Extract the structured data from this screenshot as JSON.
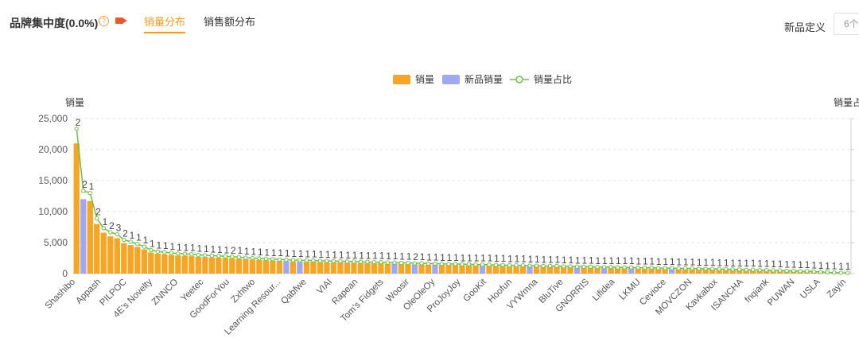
{
  "header": {
    "title": "品牌集中度(0.0%)",
    "help_icon": "help-circle-icon",
    "video_icon": "video-camera-icon",
    "tabs": [
      {
        "label": "销量分布",
        "active": true
      },
      {
        "label": "销售额分布",
        "active": false
      }
    ],
    "definition_label": "新品定义",
    "definition_select_value": "6个"
  },
  "colors": {
    "sales": "#f6a623",
    "new_sales": "#9fa8f0",
    "ratio_line": "#6cc04a",
    "accent": "#f29b26"
  },
  "chart_data": {
    "type": "bar",
    "legend": [
      "销量",
      "新品销量",
      "销量占比"
    ],
    "legend_position": "top-center",
    "ylabel": "销量",
    "ylabel_right": "销量占",
    "ylim": [
      0,
      25000
    ],
    "yticks": [
      "25,000",
      "20,000",
      "15,000",
      "10,000",
      "5,000",
      "0"
    ],
    "grid": true,
    "xtick_labels": [
      "Shashibo",
      "Appash",
      "PILPOC",
      "4E's Novelty",
      "ZNNCO",
      "Yeetec",
      "GoodForYou",
      "Zxhtwo",
      "Learning Resour...",
      "Qabfwe",
      "VIAI",
      "Rapean",
      "Tom's Fidgets",
      "Woosir",
      "OleOleOy",
      "ProJoyJoy",
      "GooKit",
      "Hoofun",
      "VYWmna",
      "BluTive",
      "GNORRIS",
      "Lifidea",
      "LKMU",
      "Cevioce",
      "MOVCZON",
      "Kavkabox",
      "ISANCHA",
      "fnqiank",
      "PUWAN",
      "USLA",
      "Zayin"
    ],
    "sales": [
      21000,
      12000,
      11700,
      8000,
      6600,
      6000,
      5700,
      4900,
      4600,
      4300,
      3900,
      3400,
      3200,
      3100,
      3000,
      2900,
      2850,
      2800,
      2700,
      2650,
      2600,
      2550,
      2500,
      2450,
      2400,
      2300,
      2250,
      2200,
      2150,
      2100,
      2050,
      2000,
      1950,
      1950,
      1900,
      1900,
      1850,
      1850,
      1800,
      1800,
      1750,
      1750,
      1700,
      1700,
      1650,
      1650,
      1600,
      1600,
      1550,
      1550,
      1500,
      1500,
      1450,
      1450,
      1400,
      1400,
      1400,
      1350,
      1350,
      1300,
      1300,
      1300,
      1250,
      1250,
      1200,
      1200,
      1200,
      1150,
      1150,
      1100,
      1100,
      1100,
      1050,
      1050,
      1000,
      1000,
      1000,
      950,
      950,
      950,
      900,
      900,
      900,
      850,
      850,
      850,
      800,
      800,
      800,
      750,
      750,
      750,
      700,
      700,
      700,
      650,
      650,
      600,
      600,
      550,
      550,
      500,
      500,
      450,
      450,
      400,
      400,
      350,
      350,
      300,
      250,
      200,
      150,
      120,
      100
    ],
    "new_sales": [
      0,
      12000,
      0,
      0,
      0,
      0,
      0,
      0,
      0,
      0,
      0,
      0,
      0,
      0,
      0,
      0,
      0,
      0,
      0,
      0,
      0,
      0,
      0,
      0,
      0,
      0,
      0,
      0,
      0,
      0,
      0,
      1950,
      0,
      1950,
      0,
      0,
      0,
      0,
      0,
      0,
      0,
      0,
      0,
      0,
      0,
      0,
      0,
      1600,
      0,
      0,
      1500,
      0,
      0,
      1450,
      0,
      0,
      0,
      0,
      0,
      0,
      1300,
      0,
      0,
      0,
      0,
      0,
      0,
      1150,
      0,
      0,
      0,
      0,
      0,
      0,
      1000,
      0,
      0,
      0,
      950,
      0,
      0,
      0,
      900,
      0,
      0,
      0,
      0,
      0,
      800,
      0,
      0,
      0,
      0,
      0,
      0,
      0,
      0,
      0,
      0,
      0,
      0,
      0,
      0,
      0,
      0,
      0,
      0,
      0,
      0,
      0,
      0,
      0,
      0,
      0,
      0
    ],
    "data_labels": [
      "2",
      "2",
      "1",
      "2",
      "1",
      "2",
      "3",
      "2",
      "1",
      "1",
      "1",
      "1",
      "1",
      "1",
      "1",
      "1",
      "1",
      "1",
      "1",
      "1",
      "1",
      "1",
      "1",
      "2",
      "1",
      "1",
      "1",
      "1",
      "1",
      "1",
      "1",
      "1",
      "1",
      "1",
      "1",
      "1",
      "1",
      "1",
      "1",
      "1",
      "1",
      "1",
      "1",
      "1",
      "1",
      "1",
      "1",
      "1",
      "1",
      "1",
      "2",
      "1",
      "1",
      "1",
      "1",
      "1",
      "1",
      "1",
      "1",
      "1",
      "1",
      "1",
      "1",
      "1",
      "1",
      "1",
      "1",
      "1",
      "1",
      "1",
      "1",
      "1",
      "1",
      "1",
      "1",
      "1",
      "1",
      "1",
      "1",
      "1",
      "1",
      "1",
      "1",
      "1",
      "1",
      "1",
      "1",
      "1",
      "1",
      "1",
      "1",
      "1",
      "1",
      "1",
      "1",
      "1",
      "1",
      "1",
      "1",
      "1",
      "1",
      "1",
      "1",
      "1",
      "1",
      "1",
      "1",
      "1",
      "1",
      "1",
      "1",
      "1",
      "1",
      "1",
      "1"
    ]
  }
}
